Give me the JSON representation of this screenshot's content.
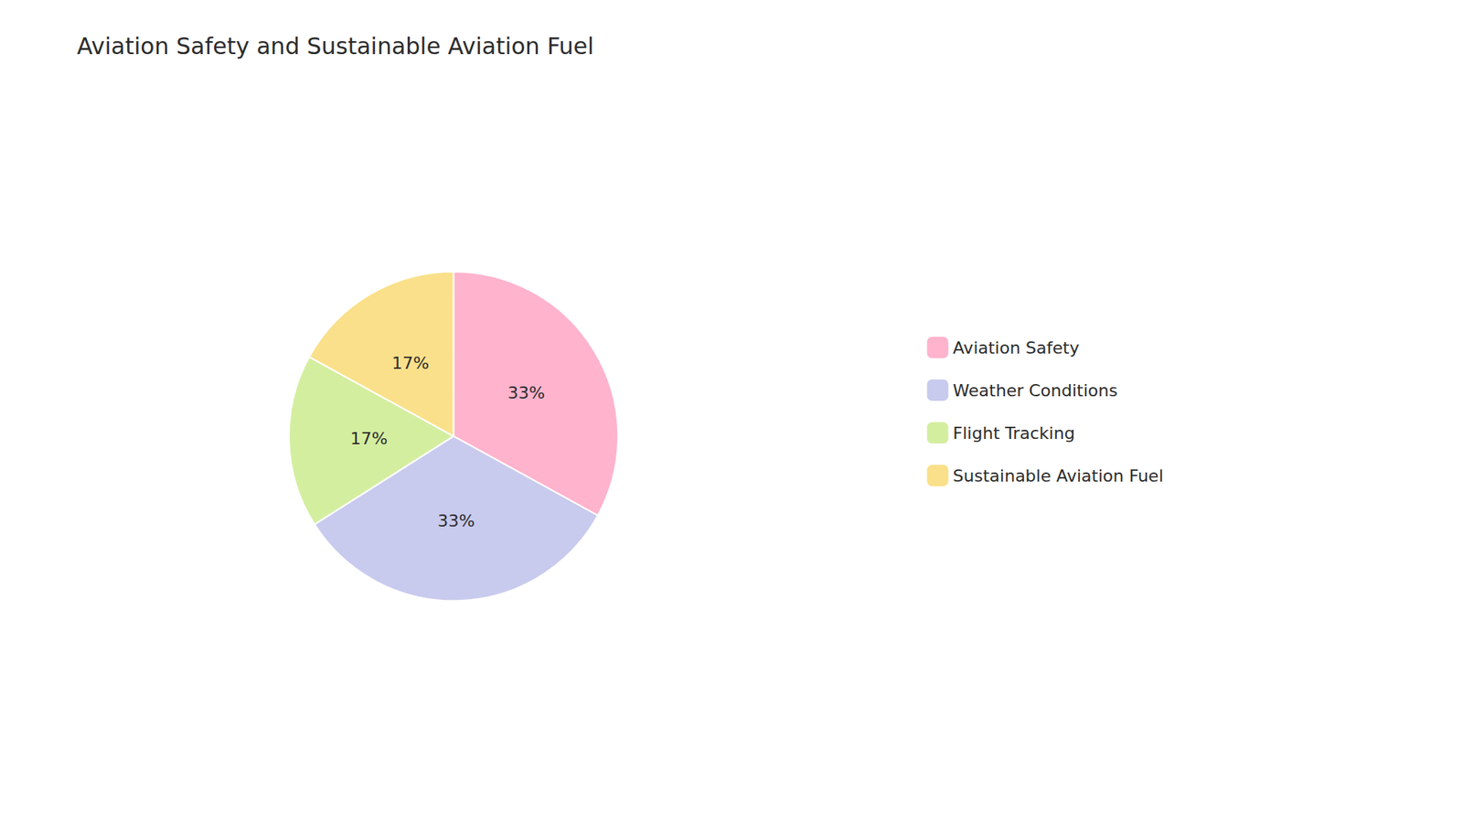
{
  "chart_data": {
    "type": "pie",
    "title": "Aviation Safety and Sustainable Aviation Fuel",
    "categories": [
      "Aviation Safety",
      "Weather Conditions",
      "Flight Tracking",
      "Sustainable Aviation Fuel"
    ],
    "values": [
      33,
      33,
      17,
      17
    ],
    "value_labels": [
      "33%",
      "33%",
      "17%",
      "17%"
    ],
    "colors": [
      "#FFB3CC",
      "#C8CAEE",
      "#D4EEA0",
      "#FAE08A"
    ],
    "data_labels": true,
    "legend": "right"
  }
}
